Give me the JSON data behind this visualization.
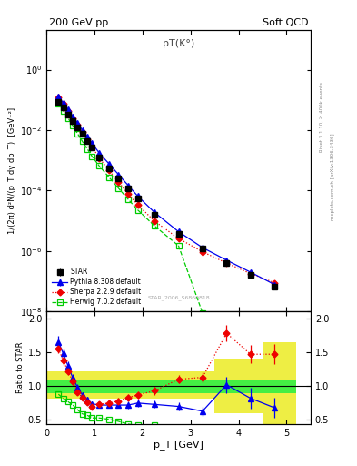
{
  "title_top_left": "200 GeV pp",
  "title_top_right": "Soft QCD",
  "plot_title": "pT(K°)",
  "xlabel": "p_T [GeV]",
  "ylabel_main": "1/(2π) d²N/(p_T dy dp_T)  [GeV⁻²]",
  "ylabel_ratio": "Ratio to STAR",
  "right_label_top": "Rivet 3.1.10, ≥ 400k events",
  "right_label_bot": "mcplots.cern.ch [arXiv:1306.3436]",
  "watermark": "STAR_2006_S6860818",
  "star_x": [
    0.25,
    0.35,
    0.45,
    0.55,
    0.65,
    0.75,
    0.85,
    0.95,
    1.1,
    1.3,
    1.5,
    1.7,
    1.9,
    2.25,
    2.75,
    3.25,
    3.75,
    4.25,
    4.75
  ],
  "star_y": [
    0.085,
    0.055,
    0.033,
    0.02,
    0.012,
    0.0073,
    0.0043,
    0.0026,
    0.00125,
    0.00055,
    0.00025,
    0.00012,
    5.5e-05,
    1.6e-05,
    3.8e-06,
    1.2e-06,
    4e-07,
    1.6e-07,
    6.5e-08
  ],
  "star_yerr": [
    0.004,
    0.003,
    0.002,
    0.001,
    0.0006,
    0.0004,
    0.0002,
    0.00013,
    6e-05,
    3e-05,
    1.2e-05,
    6e-06,
    2.8e-06,
    9e-07,
    2.2e-07,
    8e-08,
    3e-08,
    1.2e-08,
    5.5e-09
  ],
  "herwig_x": [
    0.25,
    0.35,
    0.45,
    0.55,
    0.65,
    0.75,
    0.85,
    0.95,
    1.1,
    1.3,
    1.5,
    1.7,
    1.9,
    2.25,
    2.75,
    3.25,
    3.75,
    4.25,
    4.75
  ],
  "herwig_y": [
    0.073,
    0.044,
    0.025,
    0.014,
    0.0076,
    0.0042,
    0.0024,
    0.00135,
    0.00065,
    0.00028,
    0.00012,
    5.2e-05,
    2.3e-05,
    6.8e-06,
    1.5e-06,
    9e-09,
    2.5e-09,
    8.2e-10,
    9.5e-11
  ],
  "pythia_x": [
    0.25,
    0.35,
    0.45,
    0.55,
    0.65,
    0.75,
    0.85,
    0.95,
    1.1,
    1.3,
    1.5,
    1.7,
    1.9,
    2.25,
    2.75,
    3.25,
    3.75,
    4.25,
    4.75
  ],
  "pythia_y": [
    0.13,
    0.08,
    0.048,
    0.029,
    0.017,
    0.01,
    0.0062,
    0.0037,
    0.00175,
    0.00078,
    0.00034,
    0.00015,
    6.6e-05,
    1.9e-05,
    4.4e-06,
    1.3e-06,
    5e-07,
    2e-07,
    7.8e-08
  ],
  "pythia_yerr": [
    0.006,
    0.004,
    0.002,
    0.0015,
    0.0009,
    0.0005,
    0.0003,
    0.00018,
    9e-05,
    4e-05,
    1.8e-05,
    8e-06,
    3.5e-06,
    1e-06,
    2.5e-07,
    7.5e-08,
    3e-08,
    1.2e-08,
    5e-09
  ],
  "sherpa_x": [
    0.25,
    0.35,
    0.45,
    0.55,
    0.65,
    0.75,
    0.85,
    0.95,
    1.1,
    1.3,
    1.5,
    1.7,
    1.9,
    2.25,
    2.75,
    3.25,
    3.75,
    4.25,
    4.75
  ],
  "sherpa_y": [
    0.125,
    0.075,
    0.044,
    0.025,
    0.015,
    0.0086,
    0.005,
    0.0028,
    0.0012,
    0.00047,
    0.00019,
    8e-05,
    3.4e-05,
    9.8e-06,
    2.6e-06,
    9.5e-07,
    4e-07,
    1.8e-07,
    9e-08
  ],
  "sherpa_yerr": [
    0.005,
    0.003,
    0.002,
    0.001,
    0.0006,
    0.0003,
    0.0002,
    0.00012,
    5e-05,
    2.2e-05,
    9e-06,
    4e-06,
    1.8e-06,
    5.2e-07,
    1.4e-07,
    5.5e-08,
    2.5e-08,
    1.2e-08,
    6e-09
  ],
  "ratio_herwig_x": [
    0.25,
    0.35,
    0.45,
    0.55,
    0.65,
    0.75,
    0.85,
    0.95,
    1.1,
    1.3,
    1.5,
    1.7,
    1.9,
    2.25
  ],
  "ratio_herwig_y": [
    0.88,
    0.82,
    0.77,
    0.72,
    0.65,
    0.59,
    0.57,
    0.53,
    0.53,
    0.51,
    0.48,
    0.44,
    0.42,
    0.43
  ],
  "ratio_pythia_x": [
    0.25,
    0.35,
    0.45,
    0.55,
    0.65,
    0.75,
    0.85,
    0.95,
    1.1,
    1.3,
    1.5,
    1.7,
    1.9,
    2.25,
    2.75,
    3.25,
    3.75,
    4.25,
    4.75
  ],
  "ratio_pythia_y": [
    1.65,
    1.48,
    1.3,
    1.12,
    0.98,
    0.87,
    0.8,
    0.74,
    0.72,
    0.72,
    0.72,
    0.72,
    0.75,
    0.73,
    0.7,
    0.63,
    1.02,
    0.82,
    0.68
  ],
  "ratio_pythia_yerr": [
    0.09,
    0.08,
    0.07,
    0.06,
    0.05,
    0.04,
    0.038,
    0.036,
    0.04,
    0.04,
    0.04,
    0.05,
    0.05,
    0.055,
    0.055,
    0.065,
    0.12,
    0.15,
    0.15
  ],
  "ratio_sherpa_x": [
    0.25,
    0.35,
    0.45,
    0.55,
    0.65,
    0.75,
    0.85,
    0.95,
    1.1,
    1.3,
    1.5,
    1.7,
    1.9,
    2.25,
    2.75,
    3.25,
    3.75,
    4.25,
    4.75
  ],
  "ratio_sherpa_y": [
    1.55,
    1.38,
    1.22,
    1.07,
    0.91,
    0.83,
    0.76,
    0.7,
    0.73,
    0.75,
    0.78,
    0.83,
    0.87,
    0.93,
    1.1,
    1.13,
    1.78,
    1.47,
    1.47
  ],
  "ratio_sherpa_yerr": [
    0.07,
    0.065,
    0.055,
    0.048,
    0.042,
    0.037,
    0.033,
    0.032,
    0.036,
    0.04,
    0.042,
    0.047,
    0.052,
    0.058,
    0.062,
    0.068,
    0.125,
    0.135,
    0.145
  ],
  "band_x_edges": [
    0.0,
    0.5,
    1.0,
    1.5,
    2.0,
    2.5,
    3.0,
    3.5,
    4.0,
    4.5,
    5.2
  ],
  "band_yellow_lo": [
    0.82,
    0.82,
    0.82,
    0.82,
    0.82,
    0.82,
    0.82,
    0.6,
    0.6,
    0.35,
    0.35
  ],
  "band_yellow_hi": [
    1.22,
    1.22,
    1.22,
    1.22,
    1.22,
    1.22,
    1.22,
    1.4,
    1.4,
    1.65,
    1.65
  ],
  "band_green_lo": [
    0.9,
    0.9,
    0.9,
    0.9,
    0.9,
    0.9,
    0.9,
    0.9,
    0.9,
    0.9,
    0.9
  ],
  "band_green_hi": [
    1.1,
    1.1,
    1.1,
    1.1,
    1.1,
    1.1,
    1.1,
    1.1,
    1.1,
    1.1,
    1.1
  ],
  "color_star": "#000000",
  "color_herwig": "#00cc00",
  "color_pythia": "#0000ee",
  "color_sherpa": "#ee0000",
  "color_band_yellow": "#eeee44",
  "color_band_green": "#44ee44",
  "xlim": [
    0.0,
    5.5
  ],
  "ylim_main": [
    1e-08,
    20.0
  ],
  "ylim_ratio": [
    0.44,
    2.1
  ],
  "ratio_yticks": [
    0.5,
    1.0,
    1.5,
    2.0
  ]
}
